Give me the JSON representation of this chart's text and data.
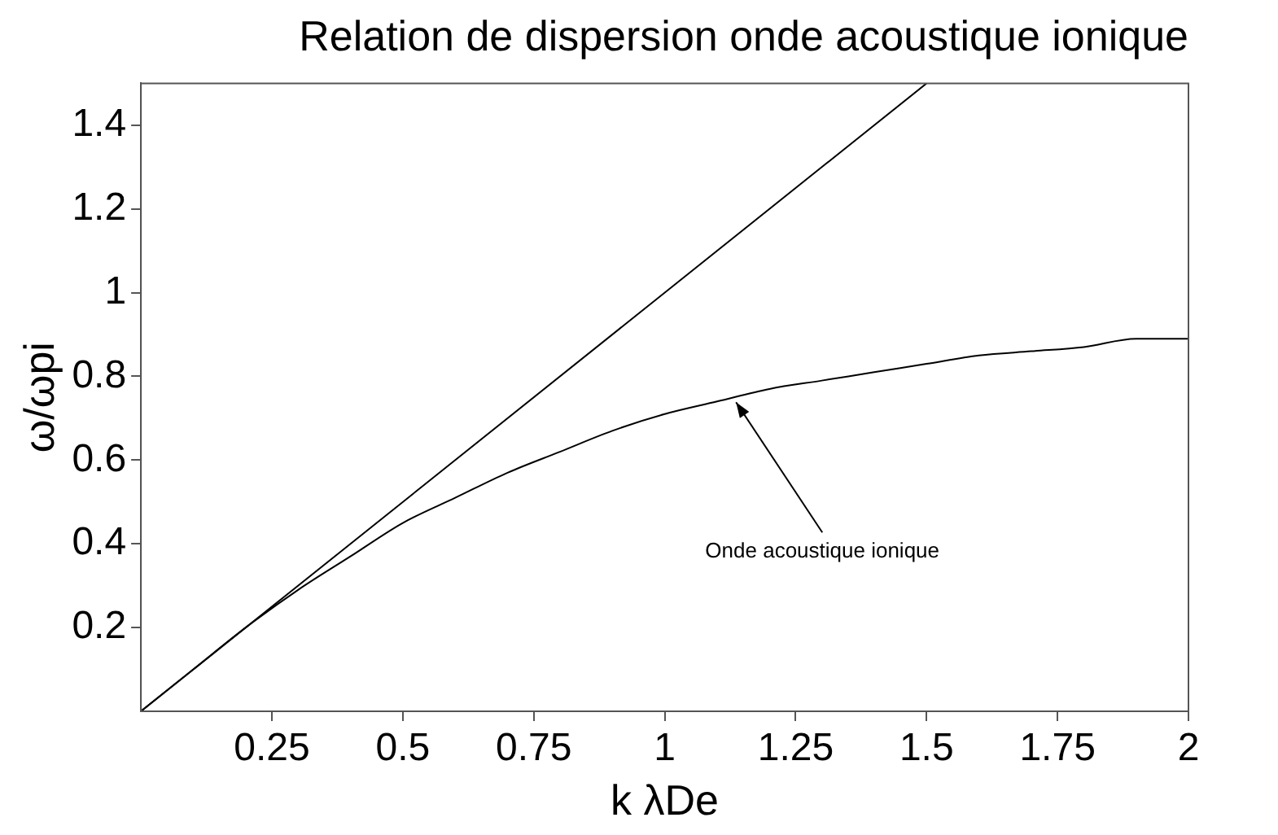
{
  "chart_data": {
    "type": "line",
    "title": "Relation de dispersion onde acoustique ionique",
    "xlabel": "k λDe",
    "ylabel": "ω/ωpi",
    "series": [
      {
        "color": "#000000",
        "x": [
          0,
          1.5
        ],
        "values": [
          0,
          1.5
        ]
      },
      {
        "color": "#000000",
        "x": [
          0,
          0.1,
          0.2,
          0.3,
          0.4,
          0.5,
          0.6,
          0.7,
          0.8,
          0.9,
          1.0,
          1.1,
          1.2,
          1.3,
          1.4,
          1.5,
          1.6,
          1.7,
          1.8,
          1.9,
          2.0
        ],
        "values": [
          0,
          0.1,
          0.2,
          0.29,
          0.37,
          0.45,
          0.51,
          0.57,
          0.62,
          0.67,
          0.71,
          0.74,
          0.77,
          0.79,
          0.81,
          0.83,
          0.85,
          0.86,
          0.87,
          0.89,
          0.89
        ]
      }
    ],
    "annotations": [
      {
        "text": "Onde acoustique ionique",
        "x": 1.13,
        "y": 0.75
      }
    ],
    "xlim": [
      0,
      2
    ],
    "xticks": [
      0.25,
      0.5,
      0.75,
      1,
      1.25,
      1.5,
      1.75,
      2
    ],
    "ylim": [
      0,
      1.5
    ],
    "yticks": [
      0.2,
      0.4,
      0.6,
      0.8,
      1,
      1.2,
      1.4
    ],
    "grid": false,
    "legend": false,
    "marker": "none",
    "line_style": "solid"
  }
}
